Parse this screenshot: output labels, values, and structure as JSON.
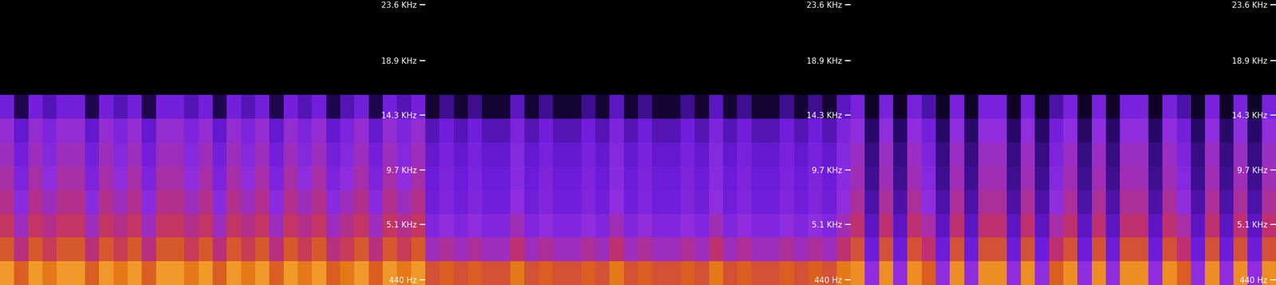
{
  "chart_data": [
    {
      "type": "heatmap",
      "ylim": [
        0,
        24000
      ],
      "tick_labels": "y",
      "clim": [
        0,
        100
      ],
      "yticks": [
        {
          "value": 440,
          "label": "440 Hz"
        },
        {
          "value": 5100,
          "label": "5.1 KHz"
        },
        {
          "value": 9700,
          "label": "9.7 KHz"
        },
        {
          "value": 14300,
          "label": "14.3 KHz"
        },
        {
          "value": 18900,
          "label": "18.9 KHz"
        },
        {
          "value": 23600,
          "label": "23.6 KHz"
        }
      ],
      "y_bins": [
        0,
        2000,
        4000,
        6000,
        8000,
        10000,
        12000,
        14000,
        16000,
        18000,
        20000,
        22000,
        24000
      ],
      "cells": [
        [
          92,
          80,
          92,
          86,
          92,
          92,
          80,
          92,
          86,
          92,
          80,
          92,
          92,
          86,
          92,
          80,
          92,
          86,
          92,
          80,
          92,
          86,
          92,
          80,
          86,
          92,
          80,
          92,
          86,
          92
        ],
        [
          78,
          64,
          78,
          70,
          78,
          78,
          64,
          78,
          70,
          78,
          64,
          78,
          78,
          70,
          78,
          64,
          78,
          70,
          78,
          64,
          78,
          70,
          78,
          64,
          70,
          78,
          64,
          78,
          70,
          78
        ],
        [
          68,
          55,
          68,
          62,
          68,
          68,
          55,
          68,
          62,
          68,
          55,
          68,
          68,
          62,
          68,
          55,
          68,
          62,
          68,
          55,
          68,
          62,
          68,
          55,
          62,
          68,
          55,
          68,
          62,
          68
        ],
        [
          62,
          48,
          62,
          55,
          62,
          62,
          48,
          62,
          55,
          62,
          48,
          62,
          62,
          55,
          62,
          48,
          62,
          55,
          62,
          48,
          62,
          55,
          62,
          48,
          55,
          62,
          48,
          62,
          55,
          62
        ],
        [
          58,
          42,
          58,
          50,
          58,
          58,
          42,
          58,
          50,
          58,
          42,
          58,
          58,
          50,
          58,
          42,
          58,
          50,
          58,
          42,
          58,
          50,
          58,
          42,
          50,
          58,
          42,
          58,
          50,
          58
        ],
        [
          55,
          38,
          55,
          46,
          55,
          55,
          38,
          55,
          46,
          55,
          38,
          55,
          55,
          46,
          55,
          38,
          55,
          46,
          55,
          38,
          55,
          46,
          55,
          38,
          46,
          55,
          38,
          55,
          46,
          55
        ],
        [
          52,
          32,
          52,
          42,
          52,
          52,
          32,
          52,
          42,
          52,
          32,
          52,
          52,
          42,
          52,
          32,
          52,
          42,
          52,
          32,
          52,
          42,
          52,
          32,
          42,
          52,
          32,
          52,
          42,
          52
        ],
        [
          38,
          12,
          38,
          28,
          38,
          38,
          12,
          38,
          28,
          38,
          12,
          38,
          38,
          28,
          38,
          12,
          38,
          28,
          38,
          12,
          38,
          28,
          38,
          12,
          28,
          38,
          12,
          38,
          28,
          38
        ],
        [
          0,
          0,
          0,
          0,
          0,
          0,
          0,
          0,
          0,
          0,
          0,
          0,
          0,
          0,
          0,
          0,
          0,
          0,
          0,
          0,
          0,
          0,
          0,
          0,
          0,
          0,
          0,
          0,
          0,
          0
        ],
        [
          0,
          0,
          0,
          0,
          0,
          0,
          0,
          0,
          0,
          0,
          0,
          0,
          0,
          0,
          0,
          0,
          0,
          0,
          0,
          0,
          0,
          0,
          0,
          0,
          0,
          0,
          0,
          0,
          0,
          0
        ],
        [
          0,
          0,
          0,
          0,
          0,
          0,
          0,
          0,
          0,
          0,
          0,
          0,
          0,
          0,
          0,
          0,
          0,
          0,
          0,
          0,
          0,
          0,
          0,
          0,
          0,
          0,
          0,
          0,
          0,
          0
        ],
        [
          0,
          0,
          0,
          0,
          0,
          0,
          0,
          0,
          0,
          0,
          0,
          0,
          0,
          0,
          0,
          0,
          0,
          0,
          0,
          0,
          0,
          0,
          0,
          0,
          0,
          0,
          0,
          0,
          0,
          0
        ]
      ]
    },
    {
      "type": "heatmap",
      "ylim": [
        0,
        24000
      ],
      "tick_labels": "y",
      "clim": [
        0,
        100
      ],
      "yticks": [
        {
          "value": 440,
          "label": "440 Hz"
        },
        {
          "value": 5100,
          "label": "5.1 KHz"
        },
        {
          "value": 9700,
          "label": "9.7 KHz"
        },
        {
          "value": 14300,
          "label": "14.3 KHz"
        },
        {
          "value": 18900,
          "label": "18.9 KHz"
        },
        {
          "value": 23600,
          "label": "23.6 KHz"
        }
      ],
      "y_bins": [
        0,
        2000,
        4000,
        6000,
        8000,
        10000,
        12000,
        14000,
        16000,
        18000,
        20000,
        22000,
        24000
      ],
      "cells": [
        [
          76,
          80,
          76,
          80,
          76,
          76,
          86,
          76,
          80,
          76,
          76,
          80,
          76,
          86,
          76,
          80,
          76,
          76,
          80,
          76,
          86,
          76,
          80,
          76,
          76,
          80,
          76,
          80,
          76,
          86
        ],
        [
          55,
          60,
          55,
          60,
          55,
          55,
          66,
          55,
          60,
          55,
          55,
          60,
          55,
          66,
          55,
          60,
          55,
          55,
          60,
          55,
          66,
          55,
          60,
          55,
          55,
          60,
          55,
          60,
          55,
          66
        ],
        [
          44,
          50,
          44,
          50,
          44,
          44,
          56,
          44,
          50,
          44,
          44,
          50,
          44,
          56,
          44,
          50,
          44,
          44,
          50,
          44,
          56,
          44,
          50,
          44,
          44,
          50,
          44,
          50,
          44,
          56
        ],
        [
          36,
          44,
          36,
          44,
          36,
          36,
          50,
          36,
          44,
          36,
          36,
          44,
          36,
          50,
          36,
          44,
          36,
          36,
          44,
          36,
          50,
          36,
          44,
          36,
          36,
          44,
          36,
          44,
          36,
          50
        ],
        [
          34,
          42,
          34,
          42,
          34,
          34,
          48,
          34,
          42,
          34,
          34,
          42,
          34,
          48,
          34,
          42,
          34,
          34,
          42,
          34,
          48,
          34,
          42,
          34,
          34,
          42,
          34,
          42,
          34,
          48
        ],
        [
          32,
          40,
          32,
          40,
          32,
          32,
          46,
          32,
          40,
          32,
          32,
          40,
          32,
          46,
          32,
          40,
          32,
          32,
          40,
          32,
          46,
          32,
          40,
          32,
          32,
          40,
          32,
          40,
          32,
          46
        ],
        [
          28,
          36,
          28,
          36,
          28,
          28,
          42,
          28,
          36,
          28,
          28,
          36,
          28,
          42,
          28,
          36,
          28,
          28,
          36,
          28,
          42,
          28,
          36,
          28,
          28,
          36,
          28,
          36,
          28,
          42
        ],
        [
          8,
          22,
          8,
          22,
          8,
          8,
          30,
          8,
          22,
          8,
          8,
          22,
          8,
          30,
          8,
          22,
          8,
          8,
          22,
          8,
          30,
          8,
          22,
          8,
          8,
          22,
          8,
          22,
          8,
          30
        ],
        [
          0,
          0,
          0,
          0,
          0,
          0,
          0,
          0,
          0,
          0,
          0,
          0,
          0,
          0,
          0,
          0,
          0,
          0,
          0,
          0,
          0,
          0,
          0,
          0,
          0,
          0,
          0,
          0,
          0,
          0
        ],
        [
          0,
          0,
          0,
          0,
          0,
          0,
          0,
          0,
          0,
          0,
          0,
          0,
          0,
          0,
          0,
          0,
          0,
          0,
          0,
          0,
          0,
          0,
          0,
          0,
          0,
          0,
          0,
          0,
          0,
          0
        ],
        [
          0,
          0,
          0,
          0,
          0,
          0,
          0,
          0,
          0,
          0,
          0,
          0,
          0,
          0,
          0,
          0,
          0,
          0,
          0,
          0,
          0,
          0,
          0,
          0,
          0,
          0,
          0,
          0,
          0,
          0
        ],
        [
          0,
          0,
          0,
          0,
          0,
          0,
          0,
          0,
          0,
          0,
          0,
          0,
          0,
          0,
          0,
          0,
          0,
          0,
          0,
          0,
          0,
          0,
          0,
          0,
          0,
          0,
          0,
          0,
          0,
          0
        ]
      ]
    },
    {
      "type": "heatmap",
      "ylim": [
        0,
        24000
      ],
      "tick_labels": "y",
      "clim": [
        0,
        100
      ],
      "yticks": [
        {
          "value": 440,
          "label": "440 Hz"
        },
        {
          "value": 5100,
          "label": "5.1 KHz"
        },
        {
          "value": 9700,
          "label": "9.7 KHz"
        },
        {
          "value": 14300,
          "label": "14.3 KHz"
        },
        {
          "value": 18900,
          "label": "18.9 KHz"
        },
        {
          "value": 23600,
          "label": "23.6 KHz"
        }
      ],
      "y_bins": [
        0,
        2000,
        4000,
        6000,
        8000,
        10000,
        12000,
        14000,
        16000,
        18000,
        20000,
        22000,
        24000
      ],
      "cells": [
        [
          90,
          50,
          90,
          50,
          90,
          80,
          50,
          90,
          50,
          90,
          90,
          50,
          90,
          50,
          80,
          90,
          50,
          90,
          50,
          90,
          90,
          50,
          90,
          80,
          50,
          90,
          50,
          90,
          50,
          90
        ],
        [
          76,
          35,
          76,
          35,
          76,
          66,
          35,
          76,
          35,
          76,
          76,
          35,
          76,
          35,
          66,
          76,
          35,
          76,
          35,
          76,
          76,
          35,
          76,
          66,
          35,
          76,
          35,
          76,
          35,
          76
        ],
        [
          66,
          30,
          66,
          30,
          66,
          58,
          30,
          66,
          30,
          66,
          66,
          30,
          66,
          30,
          58,
          66,
          30,
          66,
          30,
          66,
          66,
          30,
          66,
          58,
          30,
          66,
          30,
          66,
          30,
          66
        ],
        [
          60,
          26,
          60,
          26,
          60,
          50,
          26,
          60,
          26,
          60,
          60,
          26,
          60,
          26,
          50,
          60,
          26,
          60,
          26,
          60,
          60,
          26,
          60,
          50,
          26,
          60,
          26,
          60,
          26,
          60
        ],
        [
          56,
          22,
          56,
          22,
          56,
          46,
          22,
          56,
          22,
          56,
          56,
          22,
          56,
          22,
          46,
          56,
          22,
          56,
          22,
          56,
          56,
          22,
          56,
          46,
          22,
          56,
          22,
          56,
          22,
          56
        ],
        [
          54,
          20,
          54,
          20,
          54,
          42,
          20,
          54,
          20,
          54,
          54,
          20,
          54,
          20,
          42,
          54,
          20,
          54,
          20,
          54,
          54,
          20,
          54,
          42,
          20,
          54,
          20,
          54,
          20,
          54
        ],
        [
          50,
          16,
          50,
          16,
          50,
          38,
          16,
          50,
          16,
          50,
          50,
          16,
          50,
          16,
          38,
          50,
          16,
          50,
          16,
          50,
          50,
          16,
          50,
          38,
          16,
          50,
          16,
          50,
          16,
          50
        ],
        [
          40,
          6,
          40,
          6,
          40,
          26,
          6,
          40,
          6,
          40,
          40,
          6,
          40,
          6,
          26,
          40,
          6,
          40,
          6,
          40,
          40,
          6,
          40,
          26,
          6,
          40,
          6,
          40,
          6,
          40
        ],
        [
          0,
          0,
          0,
          0,
          0,
          0,
          0,
          0,
          0,
          0,
          0,
          0,
          0,
          0,
          0,
          0,
          0,
          0,
          0,
          0,
          0,
          0,
          0,
          0,
          0,
          0,
          0,
          0,
          0,
          0
        ],
        [
          0,
          0,
          0,
          0,
          0,
          0,
          0,
          0,
          0,
          0,
          0,
          0,
          0,
          0,
          0,
          0,
          0,
          0,
          0,
          0,
          0,
          0,
          0,
          0,
          0,
          0,
          0,
          0,
          0,
          0
        ],
        [
          0,
          0,
          0,
          0,
          0,
          0,
          0,
          0,
          0,
          0,
          0,
          0,
          0,
          0,
          0,
          0,
          0,
          0,
          0,
          0,
          0,
          0,
          0,
          0,
          0,
          0,
          0,
          0,
          0,
          0
        ],
        [
          0,
          0,
          0,
          0,
          0,
          0,
          0,
          0,
          0,
          0,
          0,
          0,
          0,
          0,
          0,
          0,
          0,
          0,
          0,
          0,
          0,
          0,
          0,
          0,
          0,
          0,
          0,
          0,
          0,
          0
        ]
      ]
    }
  ]
}
